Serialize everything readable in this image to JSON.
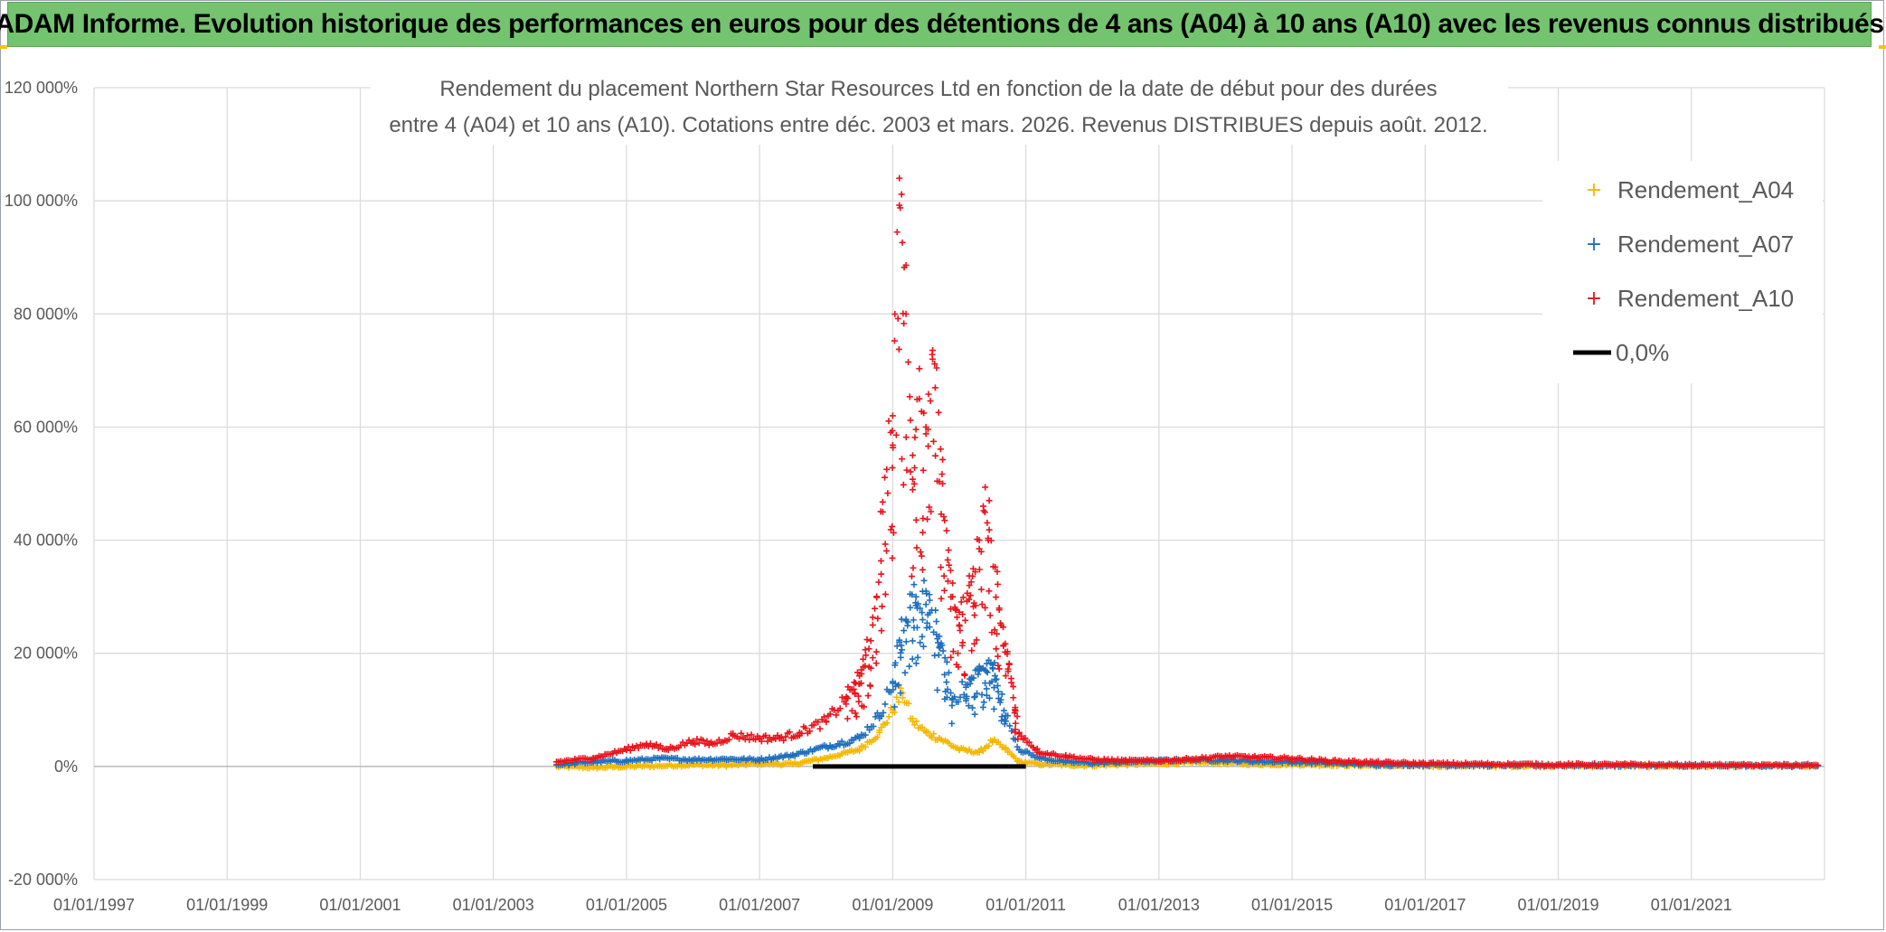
{
  "banner": {
    "title": "ADAM Informe. Evolution historique des performances en euros pour des détentions de 4 ans (A04) à 10 ans (A10) avec les revenus connus distribués"
  },
  "colors": {
    "banner_bg": "#73c36f",
    "A04": "#f5b800",
    "A07": "#1f6fbf",
    "A10": "#e8141b",
    "zero_line": "#000000",
    "grid": "#d9d9d9"
  },
  "chart_data": {
    "type": "scatter",
    "title_line1": "Rendement du placement Northern Star Resources Ltd en fonction de la date de début pour des durées",
    "title_line2": "entre 4 (A04) et 10 ans (A10). Cotations entre déc. 2003 et mars. 2026. Revenus DISTRIBUES depuis août. 2012.",
    "xlim": [
      1997.0,
      2023.0
    ],
    "ylim": [
      -20000,
      120000
    ],
    "y_ticks": [
      -20000,
      0,
      20000,
      40000,
      60000,
      80000,
      100000,
      120000
    ],
    "y_tick_labels": [
      "-20 000%",
      "0%",
      "20 000%",
      "40 000%",
      "60 000%",
      "80 000%",
      "100 000%",
      "120 000%"
    ],
    "x_ticks": [
      1997,
      1999,
      2001,
      2003,
      2005,
      2007,
      2009,
      2011,
      2013,
      2015,
      2017,
      2019,
      2021
    ],
    "x_tick_labels": [
      "01/01/1997",
      "01/01/1999",
      "01/01/2001",
      "01/01/2003",
      "01/01/2005",
      "01/01/2007",
      "01/01/2009",
      "01/01/2011",
      "01/01/2013",
      "01/01/2015",
      "01/01/2017",
      "01/01/2019",
      "01/01/2021"
    ],
    "grid": true,
    "legend_position": "top-right",
    "series": [
      {
        "name": "Rendement_A04",
        "x": [
          2003.95,
          2004.5,
          2005.0,
          2005.5,
          2006.0,
          2006.5,
          2007.0,
          2007.5,
          2008.0,
          2008.5,
          2008.8,
          2009.0,
          2009.15,
          2009.3,
          2009.5,
          2009.7,
          2010.0,
          2010.3,
          2010.5,
          2010.7,
          2010.9,
          2011.2,
          2011.6,
          2012.0,
          2012.5,
          2013.0,
          2013.5,
          2014.0,
          2014.5,
          2015.0,
          2015.5,
          2016.0,
          2016.5,
          2017.0,
          2018.0,
          2019.0,
          2020.0,
          2021.0,
          2022.0,
          2022.9
        ],
        "y": [
          0,
          -200,
          0,
          100,
          300,
          200,
          500,
          400,
          1500,
          3000,
          6000,
          10000,
          13000,
          8000,
          6000,
          5000,
          3000,
          2500,
          4500,
          3000,
          800,
          400,
          300,
          200,
          400,
          500,
          700,
          600,
          400,
          400,
          300,
          200,
          100,
          100,
          100,
          100,
          100,
          100,
          100,
          100
        ]
      },
      {
        "name": "Rendement_A07",
        "x": [
          2003.95,
          2004.5,
          2005.0,
          2005.5,
          2006.0,
          2006.5,
          2007.0,
          2007.5,
          2008.0,
          2008.5,
          2008.8,
          2009.0,
          2009.1,
          2009.2,
          2009.35,
          2009.5,
          2009.7,
          2009.9,
          2010.1,
          2010.3,
          2010.5,
          2010.7,
          2010.9,
          2011.2,
          2011.6,
          2012.0,
          2012.5,
          2013.0,
          2013.5,
          2014.0,
          2014.5,
          2015.0,
          2015.5,
          2016.0,
          2016.5,
          2017.0,
          2018.0,
          2019.0,
          2020.0,
          2021.0,
          2022.0,
          2022.9
        ],
        "y": [
          300,
          800,
          1000,
          1400,
          1200,
          1300,
          1200,
          2000,
          3500,
          5000,
          9000,
          15000,
          22000,
          26000,
          30000,
          31000,
          23000,
          12000,
          14000,
          17000,
          18000,
          9000,
          3000,
          1500,
          800,
          600,
          800,
          1000,
          1200,
          1100,
          900,
          800,
          600,
          400,
          300,
          300,
          200,
          200,
          200,
          150,
          150,
          100
        ]
      },
      {
        "name": "Rendement_A10",
        "x": [
          2003.95,
          2004.5,
          2005.0,
          2005.3,
          2005.6,
          2006.0,
          2006.3,
          2006.6,
          2007.0,
          2007.3,
          2007.6,
          2008.0,
          2008.3,
          2008.5,
          2008.7,
          2008.85,
          2009.0,
          2009.1,
          2009.2,
          2009.3,
          2009.4,
          2009.5,
          2009.6,
          2009.75,
          2009.9,
          2010.0,
          2010.15,
          2010.3,
          2010.45,
          2010.6,
          2010.75,
          2010.9,
          2011.2,
          2011.6,
          2012.0,
          2012.5,
          2013.0,
          2013.5,
          2014.0,
          2014.5,
          2015.0,
          2015.5,
          2016.0,
          2016.5,
          2017.0,
          2018.0,
          2019.0,
          2020.0,
          2021.0,
          2022.0,
          2022.9
        ],
        "y": [
          800,
          1500,
          3000,
          4000,
          3000,
          4500,
          4000,
          5500,
          5000,
          5000,
          6000,
          8000,
          12000,
          16000,
          25000,
          45000,
          62000,
          104000,
          80000,
          55000,
          65000,
          60000,
          72000,
          50000,
          30000,
          25000,
          32000,
          40000,
          47000,
          28000,
          18000,
          6000,
          2500,
          1800,
          1200,
          1000,
          1000,
          1300,
          1800,
          1600,
          1400,
          1000,
          800,
          600,
          500,
          400,
          300,
          300,
          200,
          200,
          200
        ]
      },
      {
        "name": "0,0%",
        "x": [
          2007.8,
          2011.0
        ],
        "y": [
          0,
          0
        ]
      }
    ]
  }
}
